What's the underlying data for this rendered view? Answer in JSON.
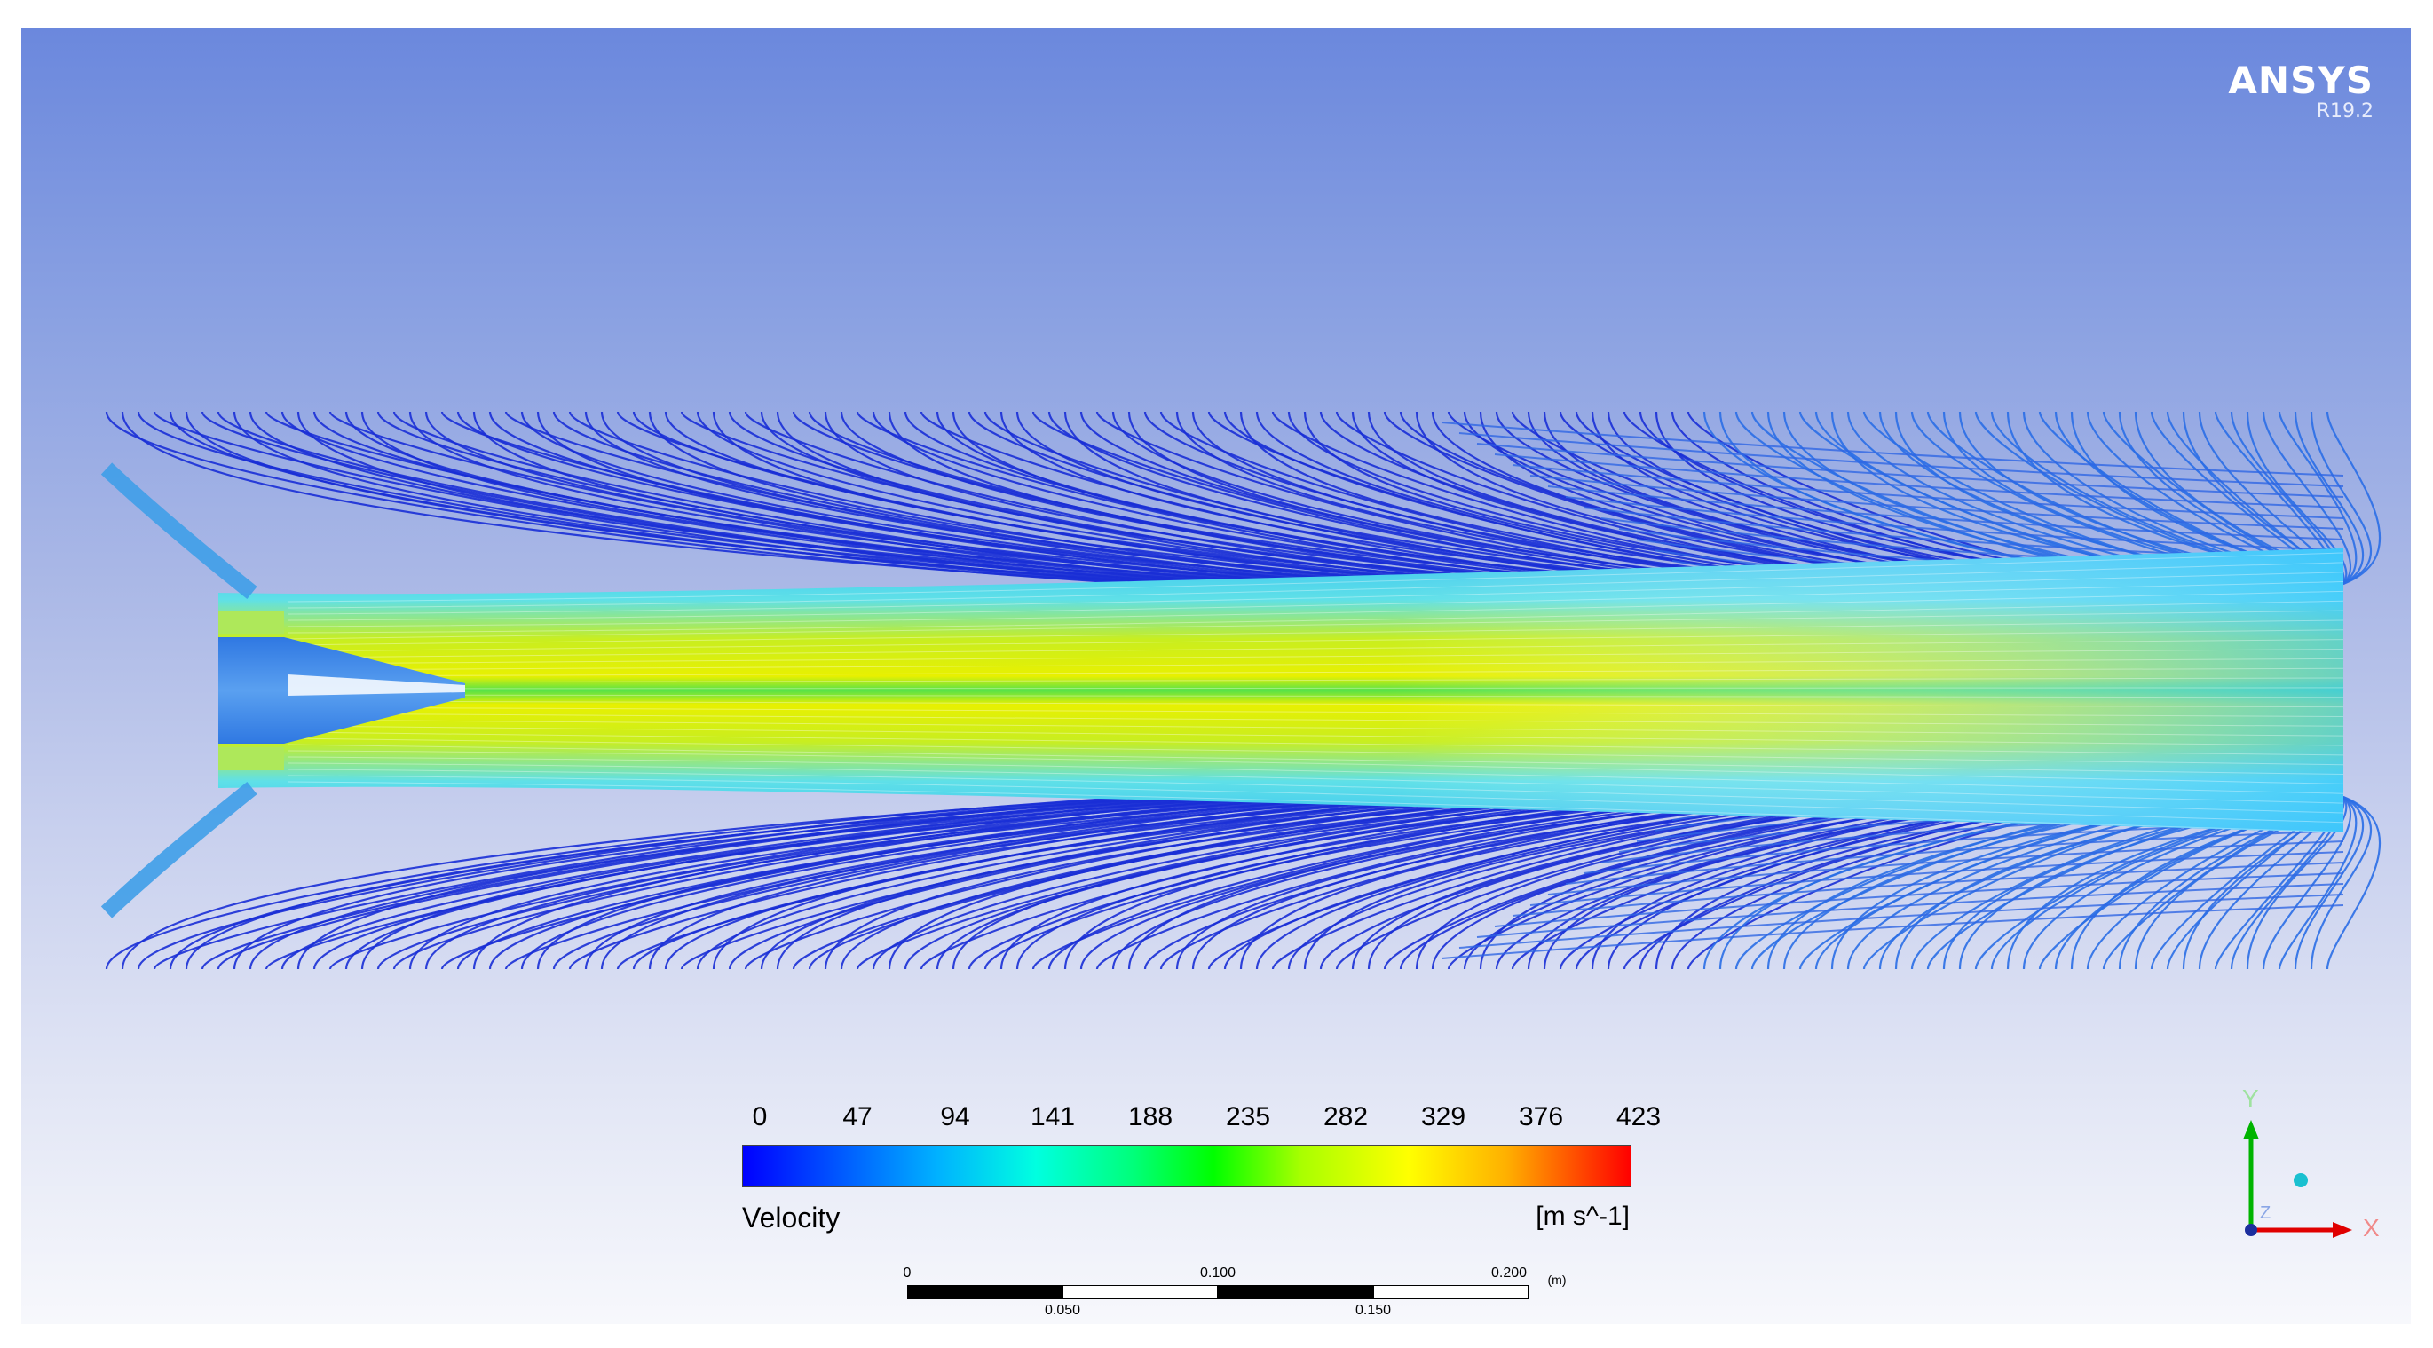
{
  "brand": {
    "name": "ANSYS",
    "version": "R19.2"
  },
  "legend": {
    "title": "Velocity",
    "unit": "[m s^-1]",
    "ticks": [
      "0",
      "47",
      "94",
      "141",
      "188",
      "235",
      "282",
      "329",
      "376",
      "423"
    ],
    "colors": [
      "#0000ff",
      "#00b2ff",
      "#00ffe0",
      "#00ff00",
      "#ffff00",
      "#ff0000"
    ]
  },
  "scale": {
    "top_labels": [
      "0",
      "0.100",
      "0.200"
    ],
    "bottom_labels": [
      "0.050",
      "0.150"
    ],
    "unit": "(m)"
  },
  "axes": {
    "x": "X",
    "y": "Y",
    "z": "Z"
  },
  "colors": {
    "streamline_slow": "#1a2fd6",
    "jet_core": "#e8f000",
    "jet_mid": "#2ee060",
    "nozzle": "#3b7fe8"
  }
}
